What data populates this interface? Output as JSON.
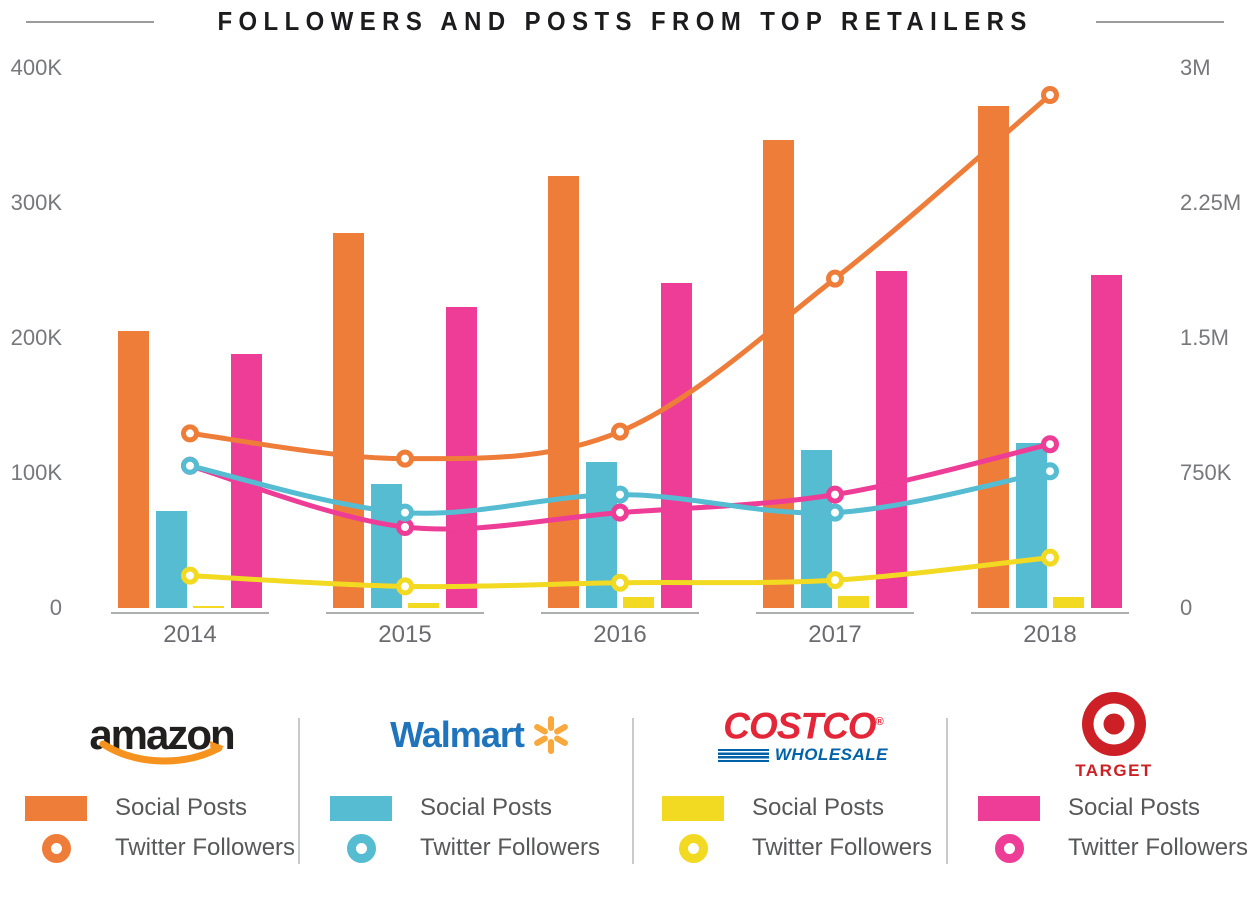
{
  "title": {
    "text": "FOLLOWERS AND POSTS FROM TOP RETAILERS"
  },
  "chart_data": {
    "type": "combo-bar-line",
    "title": "FOLLOWERS AND POSTS FROM TOP RETAILERS",
    "categories": [
      "2014",
      "2015",
      "2016",
      "2017",
      "2018"
    ],
    "grid": false,
    "legend_position": "bottom",
    "left_axis": {
      "measure": "Social Posts",
      "ticks": [
        "400K",
        "300K",
        "200K",
        "100K",
        "0"
      ],
      "min": 0,
      "max": 400000
    },
    "right_axis": {
      "measure": "Twitter Followers",
      "ticks": [
        "3M",
        "2.25M",
        "1.5M",
        "750K",
        "0"
      ],
      "min": 0,
      "max": 3000000
    },
    "series": [
      {
        "name": "Amazon",
        "color": "#ef7d3a",
        "social_posts": [
          205000,
          278000,
          320000,
          347000,
          372000
        ],
        "twitter_followers": [
          970000,
          830000,
          980000,
          1830000,
          2850000
        ]
      },
      {
        "name": "Walmart",
        "color": "#55bcd2",
        "social_posts": [
          72000,
          92000,
          108000,
          117000,
          122000
        ],
        "twitter_followers": [
          790000,
          530000,
          630000,
          530000,
          760000
        ]
      },
      {
        "name": "Costco",
        "color": "#f2d922",
        "social_posts": [
          1500,
          3500,
          8000,
          9000,
          8000
        ],
        "twitter_followers": [
          180000,
          120000,
          140000,
          155000,
          280000
        ]
      },
      {
        "name": "Target",
        "color": "#ee3d96",
        "social_posts": [
          188000,
          223000,
          241000,
          250000,
          247000
        ],
        "twitter_followers": [
          790000,
          450000,
          530000,
          630000,
          910000
        ]
      }
    ]
  },
  "legend": {
    "entries": [
      {
        "retailer": "Amazon",
        "logo_text": "amazon",
        "logo_accent": "#f6921e",
        "color": "#ef7d3a",
        "bar_label": "Social Posts",
        "line_label": "Twitter Followers"
      },
      {
        "retailer": "Walmart",
        "logo_text": "Walmart",
        "logo_accent": "#f9a83c",
        "color": "#55bcd2",
        "bar_label": "Social Posts",
        "line_label": "Twitter Followers"
      },
      {
        "retailer": "Costco",
        "logo_text": "COSTCO",
        "logo_sub": "WHOLESALE",
        "logo_accent": "#0062a8",
        "color": "#f2d922",
        "bar_label": "Social Posts",
        "line_label": "Twitter Followers"
      },
      {
        "retailer": "Target",
        "logo_text": "TARGET",
        "logo_accent": "#cc2026",
        "color": "#ee3d96",
        "bar_label": "Social Posts",
        "line_label": "Twitter Followers"
      }
    ]
  }
}
